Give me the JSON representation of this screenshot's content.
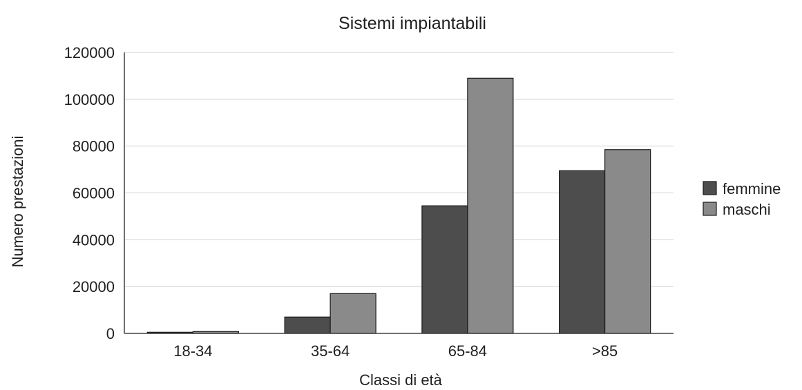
{
  "chart_data": {
    "type": "bar",
    "title": "Sistemi impiantabili",
    "xlabel": "Classi di età",
    "ylabel": "Numero prestazioni",
    "categories": [
      "18-34",
      "35-64",
      "65-84",
      ">85"
    ],
    "series": [
      {
        "name": "femmine",
        "color": "#4d4d4d",
        "values": [
          500,
          7000,
          54500,
          69500
        ]
      },
      {
        "name": "maschi",
        "color": "#8a8a8a",
        "values": [
          800,
          17000,
          109000,
          78500
        ]
      }
    ],
    "ylim": [
      0,
      120000
    ],
    "yticks": [
      0,
      20000,
      40000,
      60000,
      80000,
      100000,
      120000
    ],
    "grid": true,
    "legend_position": "right"
  }
}
